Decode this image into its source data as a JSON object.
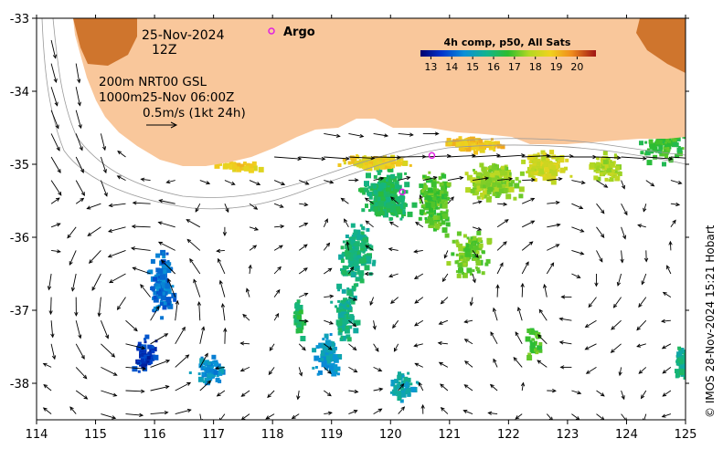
{
  "map": {
    "date": "25-Nov-2024",
    "hour": "12Z",
    "argo_label": "Argo",
    "depth_line1": "200m  NRT00 GSL",
    "depth_line2": "1000m25-Nov 06:00Z",
    "scale_label": "0.5m/s (1kt 24h)",
    "colorbar_title": "4h comp, p50, All Sats",
    "colorbar_ticks": [
      "13",
      "14",
      "15",
      "16",
      "17",
      "18",
      "19",
      "20"
    ],
    "colorbar_range": [
      12.5,
      20.9
    ],
    "credit": "© IMOS 28-Nov-2024 15:21 Hobart",
    "x_ticks": [
      "114",
      "115",
      "116",
      "117",
      "118",
      "119",
      "120",
      "121",
      "122",
      "123",
      "124",
      "125"
    ],
    "y_ticks": [
      "-33",
      "-34",
      "-35",
      "-36",
      "-37",
      "-38"
    ],
    "lon_range": [
      114,
      125
    ],
    "lat_range": [
      -38.5,
      -33
    ],
    "colors": {
      "land": "#f9c79b",
      "warm_land": "#c8661a",
      "ocean": "#ffffff",
      "argo": "#e020e0",
      "isobath": "#9a9a9a"
    },
    "argo_floats_lonlat": [
      [
        120.7,
        -34.88
      ],
      [
        120.2,
        -35.38
      ]
    ]
  }
}
